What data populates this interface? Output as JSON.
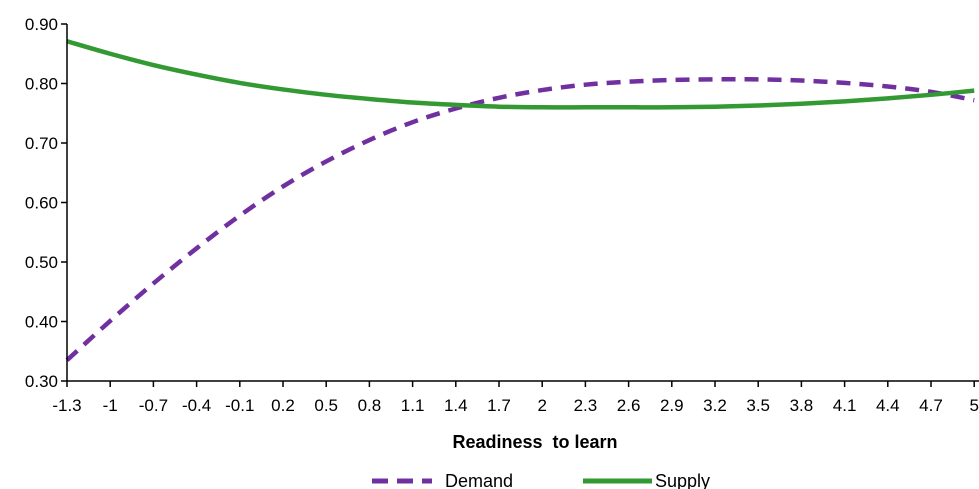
{
  "chart_data": {
    "type": "line",
    "xlabel": "Readiness  to learn",
    "ylabel": "",
    "ylim": [
      0.3,
      0.9
    ],
    "yticks": [
      "0.30",
      "0.40",
      "0.50",
      "0.60",
      "0.70",
      "0.80",
      "0.90"
    ],
    "x": [
      "-1.3",
      "-1",
      "-0.7",
      "-0.4",
      "-0.1",
      "0.2",
      "0.5",
      "0.8",
      "1.1",
      "1.4",
      "1.7",
      "2",
      "2.3",
      "2.6",
      "2.9",
      "3.2",
      "3.5",
      "3.8",
      "4.1",
      "4.4",
      "4.7",
      "5"
    ],
    "legend_position": "bottom",
    "grid": false,
    "series": [
      {
        "name": "Demand",
        "color": "#7030a0",
        "style": "dashed",
        "values": [
          0.335,
          0.401,
          0.464,
          0.523,
          0.578,
          0.627,
          0.669,
          0.705,
          0.735,
          0.758,
          0.776,
          0.789,
          0.798,
          0.803,
          0.806,
          0.807,
          0.807,
          0.805,
          0.801,
          0.795,
          0.786,
          0.772
        ]
      },
      {
        "name": "Supply",
        "color": "#339933",
        "style": "solid",
        "values": [
          0.871,
          0.85,
          0.831,
          0.815,
          0.801,
          0.79,
          0.781,
          0.774,
          0.768,
          0.764,
          0.761,
          0.76,
          0.76,
          0.76,
          0.76,
          0.761,
          0.763,
          0.766,
          0.77,
          0.775,
          0.781,
          0.788
        ]
      }
    ]
  }
}
